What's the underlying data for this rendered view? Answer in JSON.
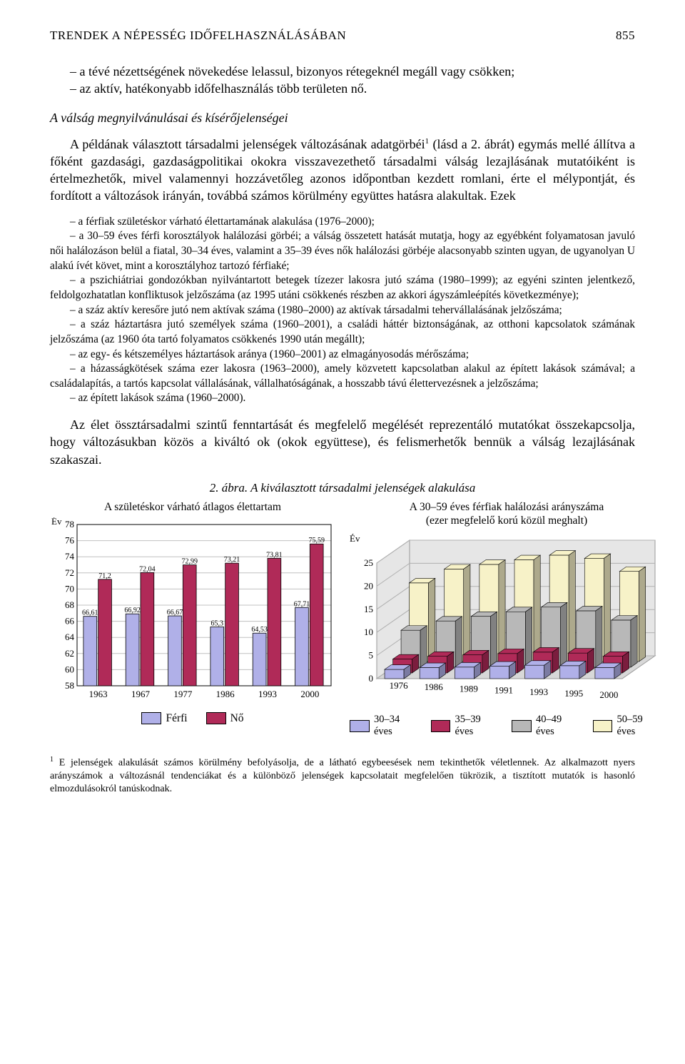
{
  "header": {
    "running_title": "TRENDEK A NÉPESSÉG IDŐFELHASZNÁLÁSÁBAN",
    "page_number": "855"
  },
  "intro_items": [
    "– a tévé nézettségének növekedése lelassul, bizonyos rétegeknél megáll vagy csökken;",
    "– az aktív, hatékonyabb időfelhasználás több területen nő."
  ],
  "section_heading": "A válság megnyilvánulásai és kísérőjelenségei",
  "para1": "A példának választott társadalmi jelenségek változásának adatgörbéi",
  "para1_sup": "1",
  "para1_cont": " (lásd a 2. ábrát) egymás mellé állítva a főként gazdasági, gazdaságpolitikai okokra visszavezethető társadalmi válság lezajlásának mutatóiként is értelmezhetők, mivel valamennyi hozzávetőleg azonos időpontban kezdett romlani, érte el mélypontját, és fordított a változások irányán, továbbá számos körülmény együttes hatásra alakultak. Ezek",
  "list": [
    "– a férfiak születéskor várható élettartamának alakulása (1976–2000);",
    "– a 30–59 éves férfi korosztályok halálozási görbéi; a válság összetett hatását mutatja, hogy az egyébként folyamatosan javuló női halálozáson belül a fiatal, 30–34 éves, valamint a 35–39 éves nők halálozási görbéje alacsonyabb szinten ugyan, de ugyanolyan U alakú ívét követ, mint a korosztályhoz tartozó férfiaké;",
    "– a pszichiátriai gondozókban nyilvántartott betegek tízezer lakosra jutó száma (1980–1999); az egyéni szinten jelentkező, feldolgozhatatlan konfliktusok jelzőszáma (az 1995 utáni csökkenés részben az akkori ágyszámleépítés következménye);",
    "– a száz aktív keresőre jutó nem aktívak száma (1980–2000) az aktívak társadalmi tehervállalásának jelzőszáma;",
    "– a száz háztartásra jutó személyek száma (1960–2001), a családi háttér biztonságának, az otthoni kapcsolatok számának jelzőszáma (az 1960 óta tartó folyamatos csökkenés 1990 után megállt);",
    "– az egy- és kétszemélyes háztartások aránya (1960–2001) az elmagányosodás mérőszáma;",
    "– a házasságkötések száma ezer lakosra (1963–2000), amely közvetett kapcsolatban alakul az épített lakások számával; a családalapítás, a tartós kapcsolat vállalásának, vállalhatóságának, a hosszabb távú élettervezésnek a jelzőszáma;",
    "– az épített lakások száma (1960–2000)."
  ],
  "para2": "Az élet össztársadalmi szintű fenntartását és megfelelő megélését reprezentáló mutatókat összekapcsolja, hogy változásukban közös a kiváltó ok (okok együttese), és felismerhetők bennük a válság lezajlásának szakaszai.",
  "figure_caption": "2. ábra. A kiválasztott társadalmi jelenségek alakulása",
  "chart_left": {
    "title": "A születéskor várható átlagos élettartam",
    "y_label": "Év",
    "type": "bar",
    "categories": [
      "1963",
      "1967",
      "1977",
      "1986",
      "1993",
      "2000"
    ],
    "series": [
      {
        "name": "Férfi",
        "color": "#b0b0e8",
        "border": "#000000",
        "values": [
          66.61,
          66.92,
          66.67,
          65.3,
          64.53,
          67.71
        ],
        "labels": [
          "66,61",
          "66,92",
          "66,67",
          "65,3",
          "64,53",
          "67,71"
        ]
      },
      {
        "name": "Nő",
        "color": "#b02a58",
        "border": "#000000",
        "values": [
          71.2,
          72.04,
          72.99,
          73.21,
          73.81,
          75.59
        ],
        "labels": [
          "71,2",
          "72,04",
          "72,99",
          "73,21",
          "73,81",
          "75,59"
        ]
      }
    ],
    "ylim": [
      58,
      78
    ],
    "ytick_step": 2,
    "grid_color": "#c0c0c0",
    "background_color": "#ffffff",
    "value_label_fontsize": 10,
    "axis_fontsize": 13,
    "bar_group_width": 0.7
  },
  "chart_right": {
    "title_line1": "A 30–59 éves férfiak halálozási arányszáma",
    "title_line2": "(ezer megfelelő korú közül meghalt)",
    "y_label": "Év",
    "type": "bar3d",
    "x_categories": [
      "1976",
      "1986",
      "1989",
      "1991",
      "1993",
      "1995",
      "2000"
    ],
    "series": [
      {
        "name": "30–34 éves",
        "color": "#b0b0e8",
        "values": [
          2,
          2.4,
          2.5,
          2.7,
          2.9,
          2.8,
          2.4
        ]
      },
      {
        "name": "35–39 éves",
        "color": "#b02a58",
        "values": [
          3,
          3.6,
          3.9,
          4.2,
          4.5,
          4.3,
          3.6
        ]
      },
      {
        "name": "40–49 éves",
        "color": "#b8b8b8",
        "values": [
          8,
          10,
          11,
          12,
          13,
          12.2,
          10.2
        ]
      },
      {
        "name": "50–59 éves",
        "color": "#f7f2c8",
        "values": [
          17,
          20,
          21,
          22,
          23,
          22.3,
          19.5
        ]
      }
    ],
    "ylim": [
      0,
      25
    ],
    "ytick_step": 5,
    "axis_fontsize": 13,
    "floor_color": "#d8d8d8",
    "wall_color": "#e6e6e6",
    "grid_color": "#b0b0b0"
  },
  "legend_left": [
    {
      "label": "Férfi",
      "color": "#b0b0e8"
    },
    {
      "label": "Nő",
      "color": "#b02a58"
    }
  ],
  "legend_right": [
    {
      "label": "30–34 éves",
      "color": "#b0b0e8"
    },
    {
      "label": "35–39 éves",
      "color": "#b02a58"
    },
    {
      "label": "40–49 éves",
      "color": "#b8b8b8"
    },
    {
      "label": "50–59 éves",
      "color": "#f7f2c8"
    }
  ],
  "footnote": {
    "sup": "1",
    "text": " E jelenségek alakulását számos körülmény befolyásolja, de a látható egybeesések nem tekinthetők véletlennek. Az alkalmazott nyers arányszámok a változásnál tendenciákat és a különböző jelenségek kapcsolatait megfelelően tükrözik, a tisztított mutatók is hasonló elmozdulásokról tanúskodnak."
  }
}
